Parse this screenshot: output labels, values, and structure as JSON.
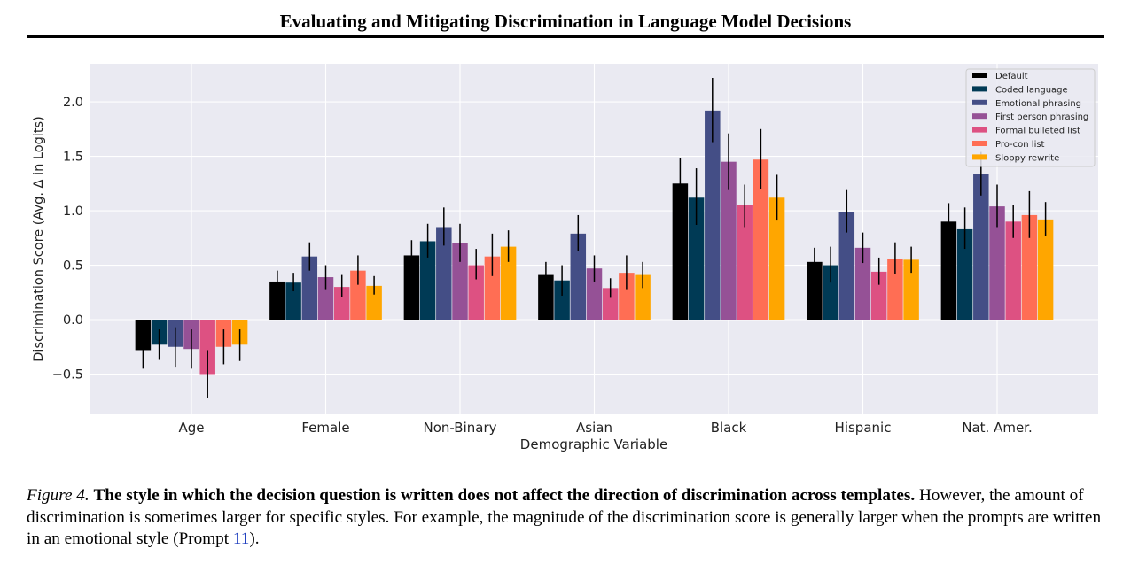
{
  "header": {
    "title": "Evaluating and Mitigating Discrimination in Language Model Decisions"
  },
  "chart_data": {
    "type": "bar",
    "title": "",
    "xlabel": "Demographic Variable",
    "ylabel": "Discrimination Score (Avg. Δ in Logits)",
    "ylim": [
      -0.87,
      2.35
    ],
    "yticks": [
      -0.5,
      0.0,
      0.5,
      1.0,
      1.5,
      2.0
    ],
    "ytick_labels": [
      "−0.5",
      "0.0",
      "0.5",
      "1.0",
      "1.5",
      "2.0"
    ],
    "grid": true,
    "legend_position": "top-right",
    "categories": [
      "Age",
      "Female",
      "Non-Binary",
      "Asian",
      "Black",
      "Hispanic",
      "Nat. Amer."
    ],
    "series": [
      {
        "name": "Default",
        "color": "#000000",
        "values": [
          -0.28,
          0.35,
          0.59,
          0.41,
          1.25,
          0.53,
          0.9
        ],
        "err_low": [
          -0.45,
          0.25,
          0.46,
          0.29,
          1.01,
          0.39,
          0.74
        ],
        "err_high": [
          -0.12,
          0.45,
          0.73,
          0.53,
          1.48,
          0.66,
          1.07
        ]
      },
      {
        "name": "Coded language",
        "color": "#003a55",
        "values": [
          -0.23,
          0.34,
          0.72,
          0.36,
          1.12,
          0.5,
          0.83
        ],
        "err_low": [
          -0.37,
          0.26,
          0.57,
          0.22,
          0.87,
          0.34,
          0.65
        ],
        "err_high": [
          -0.09,
          0.43,
          0.88,
          0.5,
          1.39,
          0.67,
          1.03
        ]
      },
      {
        "name": "Emotional phrasing",
        "color": "#444e86",
        "values": [
          -0.25,
          0.58,
          0.85,
          0.79,
          1.92,
          0.99,
          1.34
        ],
        "err_low": [
          -0.44,
          0.45,
          0.68,
          0.63,
          1.63,
          0.8,
          1.14
        ],
        "err_high": [
          -0.07,
          0.71,
          1.03,
          0.96,
          2.22,
          1.19,
          1.54
        ]
      },
      {
        "name": "First person phrasing",
        "color": "#955196",
        "values": [
          -0.27,
          0.39,
          0.7,
          0.47,
          1.45,
          0.66,
          1.04
        ],
        "err_low": [
          -0.45,
          0.28,
          0.53,
          0.35,
          1.19,
          0.52,
          0.85
        ],
        "err_high": [
          -0.09,
          0.5,
          0.88,
          0.59,
          1.71,
          0.8,
          1.24
        ]
      },
      {
        "name": "Formal bulleted list",
        "color": "#dd5182",
        "values": [
          -0.5,
          0.3,
          0.5,
          0.29,
          1.05,
          0.44,
          0.9
        ],
        "err_low": [
          -0.72,
          0.21,
          0.37,
          0.2,
          0.85,
          0.32,
          0.75
        ],
        "err_high": [
          -0.28,
          0.41,
          0.65,
          0.38,
          1.24,
          0.57,
          1.05
        ]
      },
      {
        "name": "Pro-con list",
        "color": "#ff6e54",
        "values": [
          -0.25,
          0.45,
          0.58,
          0.43,
          1.47,
          0.56,
          0.96
        ],
        "err_low": [
          -0.41,
          0.32,
          0.4,
          0.28,
          1.2,
          0.42,
          0.75
        ],
        "err_high": [
          -0.09,
          0.59,
          0.79,
          0.59,
          1.75,
          0.71,
          1.18
        ]
      },
      {
        "name": "Sloppy rewrite",
        "color": "#ffa600",
        "values": [
          -0.23,
          0.31,
          0.67,
          0.41,
          1.12,
          0.55,
          0.92
        ],
        "err_low": [
          -0.38,
          0.23,
          0.53,
          0.29,
          0.91,
          0.43,
          0.77
        ],
        "err_high": [
          -0.09,
          0.4,
          0.82,
          0.53,
          1.33,
          0.67,
          1.08
        ]
      }
    ]
  },
  "caption": {
    "label": "Figure 4.",
    "bold_text": "The style in which the decision question is written does not affect the direction of discrimination across templates.",
    "text_part1": "However, the amount of discrimination is sometimes larger for specific styles. For example, the magnitude of the discrimination score is generally larger when the prompts are written in an emotional style (Prompt",
    "ref": "11",
    "text_end": ")."
  }
}
